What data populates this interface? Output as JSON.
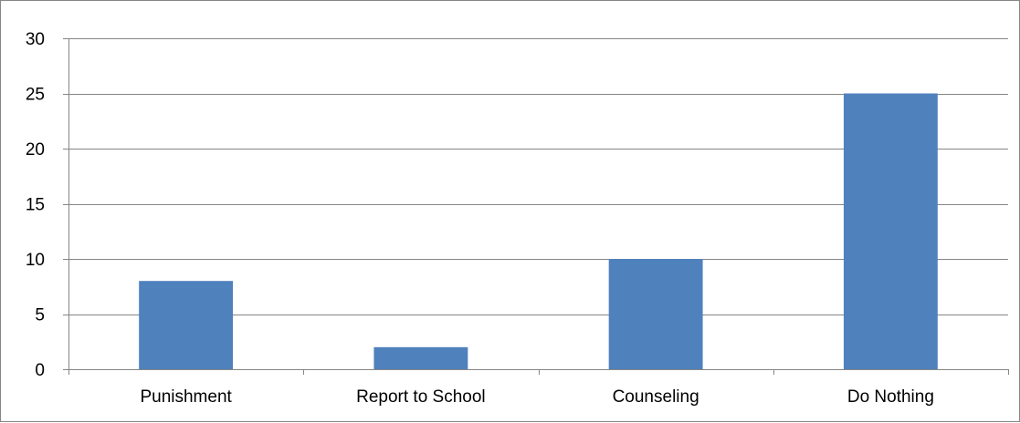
{
  "chart_data": {
    "type": "bar",
    "categories": [
      "Punishment",
      "Report to School",
      "Counseling",
      "Do Nothing"
    ],
    "values": [
      8,
      2,
      10,
      25
    ],
    "title": "",
    "xlabel": "",
    "ylabel": "",
    "ylim": [
      0,
      30
    ],
    "yticks": [
      0,
      5,
      10,
      15,
      20,
      25,
      30
    ],
    "grid": true,
    "legend": "none",
    "bar_color": "#4f81bd",
    "gridline_color": "#868686"
  }
}
